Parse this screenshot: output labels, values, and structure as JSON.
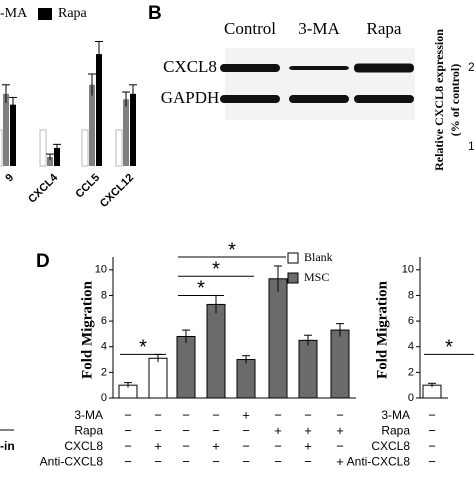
{
  "chart_data": [
    {
      "type": "bar",
      "categories": [
        "9",
        "CXCL4",
        "CCL5",
        "CXCL12"
      ],
      "series": [
        {
          "name": null,
          "color": "#ffffff",
          "values": [
            1,
            1,
            1,
            1
          ],
          "errors": [
            0,
            0,
            0,
            0
          ]
        },
        {
          "name": "-MA",
          "color": "#808080",
          "values": [
            2.0,
            0.25,
            2.25,
            1.85
          ],
          "errors": [
            0.25,
            0.08,
            0.3,
            0.2
          ]
        },
        {
          "name": "Rapa",
          "color": "#000000",
          "values": [
            1.7,
            0.5,
            3.1,
            2.0
          ],
          "errors": [
            0.2,
            0.1,
            0.35,
            0.25
          ]
        }
      ],
      "ylim": [
        0,
        4.6
      ]
    },
    {
      "type": "bar",
      "panel": "D",
      "ylabel": "Fold Migration",
      "categories": [
        null,
        null,
        null,
        null,
        null,
        null,
        null,
        null
      ],
      "values": [
        1.0,
        3.1,
        4.8,
        7.3,
        3.0,
        9.3,
        4.5,
        5.3
      ],
      "errors": [
        0.2,
        0.3,
        0.5,
        0.7,
        0.3,
        1.0,
        0.4,
        0.5
      ],
      "group": [
        "Blank",
        "Blank",
        "MSC",
        "MSC",
        "MSC",
        "MSC",
        "MSC",
        "MSC"
      ],
      "series": [
        {
          "name": "Blank",
          "color": "#ffffff"
        },
        {
          "name": "MSC",
          "color": "#6b6b6b"
        }
      ],
      "ylim": [
        0,
        11
      ],
      "yticks": [
        0,
        2,
        4,
        6,
        8,
        10
      ],
      "significance": [
        {
          "from": 0,
          "to": 1,
          "y": 3.4,
          "label": "*"
        },
        {
          "from": 2,
          "to": 3,
          "y": 8.0,
          "label": "*"
        },
        {
          "from": 2,
          "to": 4,
          "y": 9.5,
          "label": "*"
        },
        {
          "from": 2,
          "to": 5,
          "y": 11,
          "label": "*"
        }
      ],
      "treatments": [
        {
          "name": "3-MA",
          "signs": [
            "−",
            "−",
            "−",
            "−",
            "+",
            "−",
            "−",
            "−"
          ]
        },
        {
          "name": "Rapa",
          "signs": [
            "−",
            "−",
            "−",
            "−",
            "−",
            "+",
            "+",
            "+"
          ]
        },
        {
          "name": "CXCL8",
          "signs": [
            "−",
            "+",
            "−",
            "+",
            "−",
            "−",
            "+",
            "−"
          ]
        },
        {
          "name": "Anti-CXCL8",
          "signs": [
            "−",
            "−",
            "−",
            "−",
            "−",
            "−",
            "−",
            "+"
          ]
        }
      ]
    },
    {
      "type": "bar",
      "ylabel": "Fold Migration",
      "categories": [
        null
      ],
      "values": [
        1.0
      ],
      "errors": [
        0.15
      ],
      "color": "#ffffff",
      "ylim": [
        0,
        11
      ],
      "yticks": [
        0,
        2,
        4,
        6,
        8,
        10
      ],
      "significance": [
        {
          "from": 0,
          "to": 0,
          "y": 3.4,
          "label": "*"
        }
      ],
      "treatments": [
        {
          "name": "3-MA",
          "signs": [
            "−"
          ]
        },
        {
          "name": "Rapa",
          "signs": [
            "−"
          ]
        },
        {
          "name": "CXCL8",
          "signs": [
            "−"
          ]
        },
        {
          "name": "Anti-CXCL8",
          "signs": [
            "−"
          ]
        }
      ]
    }
  ],
  "blot": {
    "panel": "B",
    "lanes": [
      "Control",
      "3-MA",
      "Rapa"
    ],
    "rows": [
      "CXCL8",
      "GAPDH"
    ],
    "ylabel": [
      "Relative CXCL8 expression",
      "(% of control)"
    ],
    "edge_ticks": [
      "2",
      "1"
    ]
  },
  "fragment": "-in"
}
